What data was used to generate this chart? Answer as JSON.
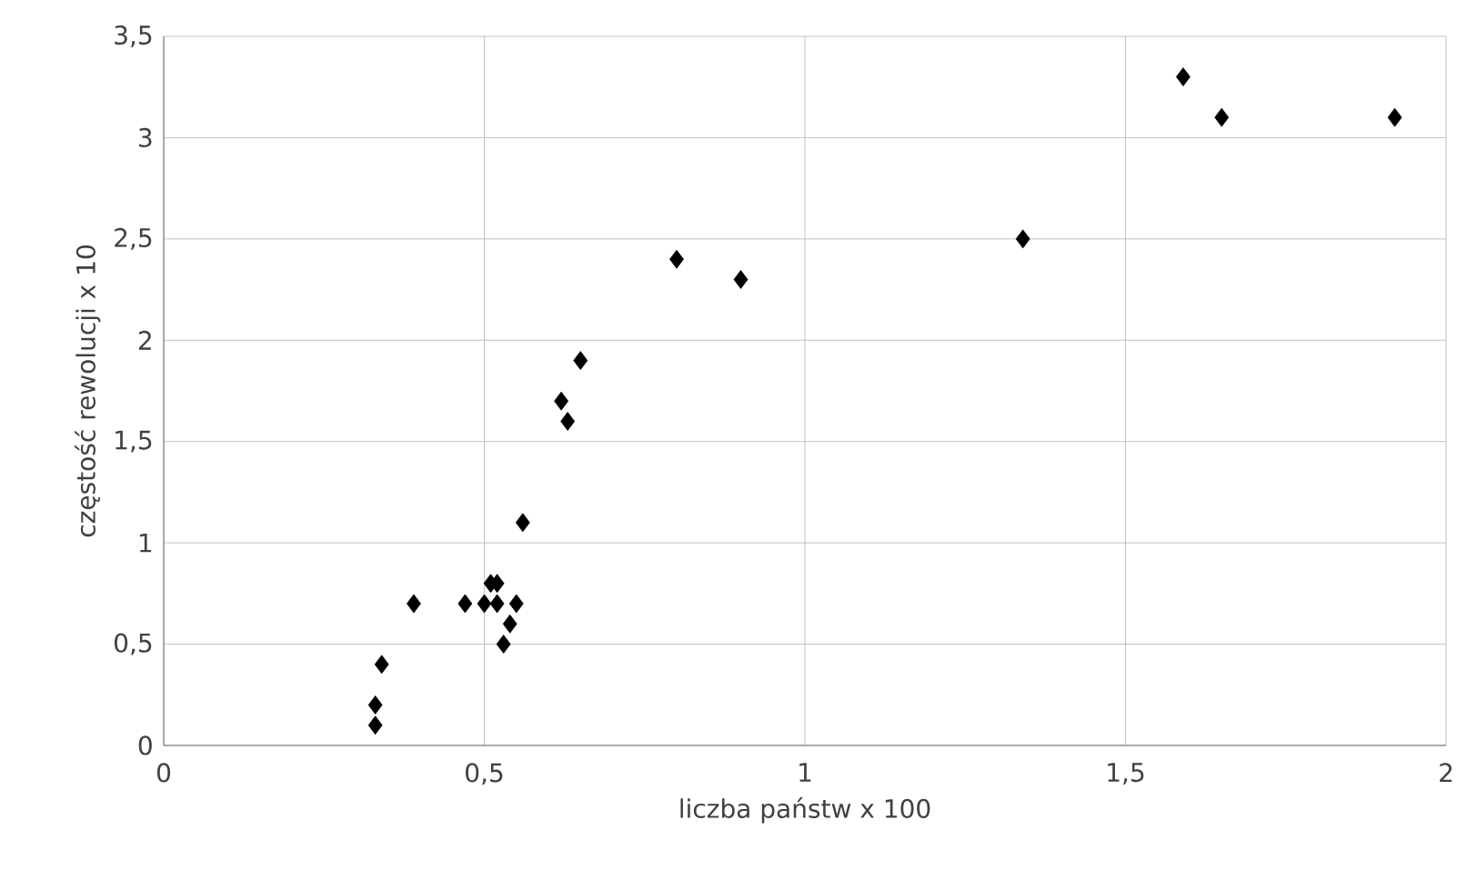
{
  "chart_data": {
    "type": "scatter",
    "xlabel": "liczba państw x 100",
    "ylabel": "częstość rewolucji x 10",
    "marker": "diamond",
    "grid": true,
    "xlim": [
      0,
      2
    ],
    "xticks": [
      {
        "value": 0,
        "label": "0"
      },
      {
        "value": 0.5,
        "label": "0,5"
      },
      {
        "value": 1,
        "label": "1"
      },
      {
        "value": 1.5,
        "label": "1,5"
      },
      {
        "value": 2,
        "label": "2"
      }
    ],
    "ylim": [
      0,
      3.5
    ],
    "yticks": [
      {
        "value": 0,
        "label": "0"
      },
      {
        "value": 0.5,
        "label": "0,5"
      },
      {
        "value": 1,
        "label": "1"
      },
      {
        "value": 1.5,
        "label": "1,5"
      },
      {
        "value": 2,
        "label": "2"
      },
      {
        "value": 2.5,
        "label": "2,5"
      },
      {
        "value": 3,
        "label": "3"
      },
      {
        "value": 3.5,
        "label": "3,5"
      }
    ],
    "series": [
      {
        "color": "#000000",
        "x": [
          0.33,
          0.33,
          0.34,
          0.39,
          0.47,
          0.5,
          0.51,
          0.52,
          0.52,
          0.53,
          0.54,
          0.55,
          0.56,
          0.62,
          0.63,
          0.65,
          0.8,
          0.9,
          1.34,
          1.59,
          1.65,
          1.92
        ],
        "values": [
          0.1,
          0.2,
          0.4,
          0.7,
          0.7,
          0.7,
          0.8,
          0.8,
          0.7,
          0.5,
          0.6,
          0.7,
          1.1,
          1.7,
          1.6,
          1.9,
          2.4,
          2.3,
          2.5,
          3.3,
          3.1,
          3.1
        ]
      }
    ]
  }
}
